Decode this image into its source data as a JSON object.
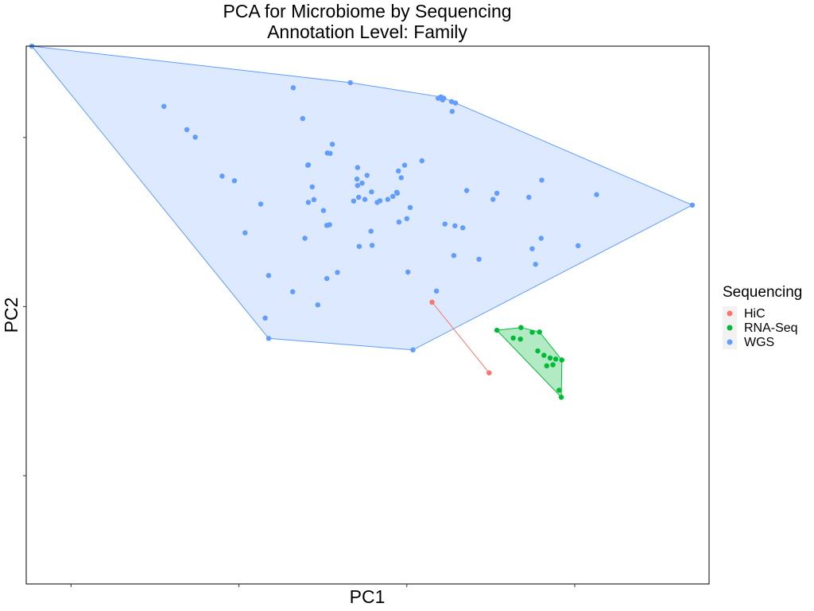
{
  "chart_data": {
    "type": "scatter",
    "title": "PCA for Microbiome by Sequencing",
    "subtitle": "Annotation Level: Family",
    "xlabel": "PC1",
    "ylabel": "PC2",
    "xlim": [
      -0.08,
      1.14
    ],
    "ylim": [
      -0.32,
      1.27
    ],
    "x_ticks": [
      0.0,
      0.3,
      0.6,
      0.9
    ],
    "y_ticks": [
      0.0,
      0.5,
      1.0
    ],
    "grid": false,
    "legend": {
      "title": "Sequencing",
      "position": "right"
    },
    "hull_polygons": true,
    "series": [
      {
        "name": "HiC",
        "color": "#F8766D",
        "points": [
          [
            0.645,
            0.513
          ],
          [
            0.747,
            0.304
          ]
        ]
      },
      {
        "name": "RNA-Seq",
        "color": "#00BA38",
        "points": [
          [
            0.761,
            0.43
          ],
          [
            0.804,
            0.438
          ],
          [
            0.824,
            0.424
          ],
          [
            0.837,
            0.425
          ],
          [
            0.803,
            0.404
          ],
          [
            0.79,
            0.407
          ],
          [
            0.834,
            0.369
          ],
          [
            0.845,
            0.356
          ],
          [
            0.856,
            0.348
          ],
          [
            0.866,
            0.345
          ],
          [
            0.877,
            0.342
          ],
          [
            0.861,
            0.328
          ],
          [
            0.85,
            0.325
          ],
          [
            0.872,
            0.253
          ],
          [
            0.876,
            0.232
          ]
        ]
      },
      {
        "name": "WGS",
        "color": "#619CFF",
        "points": [
          [
            -0.07,
            1.27
          ],
          [
            0.499,
            1.162
          ],
          [
            0.661,
            1.12
          ],
          [
            0.666,
            1.116
          ],
          [
            0.664,
            1.111
          ],
          [
            0.656,
            1.116
          ],
          [
            0.68,
            1.106
          ],
          [
            0.687,
            1.102
          ],
          [
            0.681,
            1.077
          ],
          [
            0.397,
            1.147
          ],
          [
            0.166,
            1.092
          ],
          [
            0.207,
            1.023
          ],
          [
            0.414,
            1.056
          ],
          [
            0.222,
            1.001
          ],
          [
            0.467,
            0.98
          ],
          [
            0.463,
            0.953
          ],
          [
            0.458,
            0.954
          ],
          [
            0.423,
            0.918
          ],
          [
            0.424,
            0.919
          ],
          [
            0.512,
            0.911
          ],
          [
            0.529,
            0.888
          ],
          [
            0.596,
            0.918
          ],
          [
            0.627,
            0.931
          ],
          [
            0.585,
            0.901
          ],
          [
            0.59,
            0.881
          ],
          [
            0.511,
            0.877
          ],
          [
            0.52,
            0.865
          ],
          [
            0.27,
            0.886
          ],
          [
            0.292,
            0.872
          ],
          [
            0.431,
            0.854
          ],
          [
            0.512,
            0.858
          ],
          [
            0.537,
            0.839
          ],
          [
            0.583,
            0.835
          ],
          [
            0.582,
            0.838
          ],
          [
            0.575,
            0.826
          ],
          [
            0.566,
            0.817
          ],
          [
            0.707,
            0.843
          ],
          [
            0.761,
            0.835
          ],
          [
            0.754,
            0.817
          ],
          [
            0.818,
            0.823
          ],
          [
            0.841,
            0.874
          ],
          [
            0.939,
            0.831
          ],
          [
            1.11,
            0.8
          ],
          [
            0.339,
            0.803
          ],
          [
            0.424,
            0.808
          ],
          [
            0.434,
            0.816
          ],
          [
            0.505,
            0.812
          ],
          [
            0.525,
            0.817
          ],
          [
            0.547,
            0.808
          ],
          [
            0.552,
            0.813
          ],
          [
            0.451,
            0.784
          ],
          [
            0.606,
            0.793
          ],
          [
            0.514,
            0.823
          ],
          [
            0.6,
            0.76
          ],
          [
            0.586,
            0.75
          ],
          [
            0.457,
            0.74
          ],
          [
            0.668,
            0.744
          ],
          [
            0.686,
            0.739
          ],
          [
            0.7,
            0.733
          ],
          [
            0.311,
            0.718
          ],
          [
            0.418,
            0.702
          ],
          [
            0.462,
            0.742
          ],
          [
            0.536,
            0.723
          ],
          [
            0.538,
            0.681
          ],
          [
            0.515,
            0.678
          ],
          [
            0.84,
            0.702
          ],
          [
            0.906,
            0.68
          ],
          [
            0.824,
            0.671
          ],
          [
            0.684,
            0.651
          ],
          [
            0.729,
            0.64
          ],
          [
            0.83,
            0.625
          ],
          [
            0.353,
            0.592
          ],
          [
            0.476,
            0.601
          ],
          [
            0.602,
            0.602
          ],
          [
            0.457,
            0.583
          ],
          [
            0.396,
            0.544
          ],
          [
            0.653,
            0.546
          ],
          [
            0.441,
            0.505
          ],
          [
            0.347,
            0.466
          ],
          [
            0.353,
            0.406
          ],
          [
            0.611,
            0.372
          ]
        ]
      }
    ]
  }
}
